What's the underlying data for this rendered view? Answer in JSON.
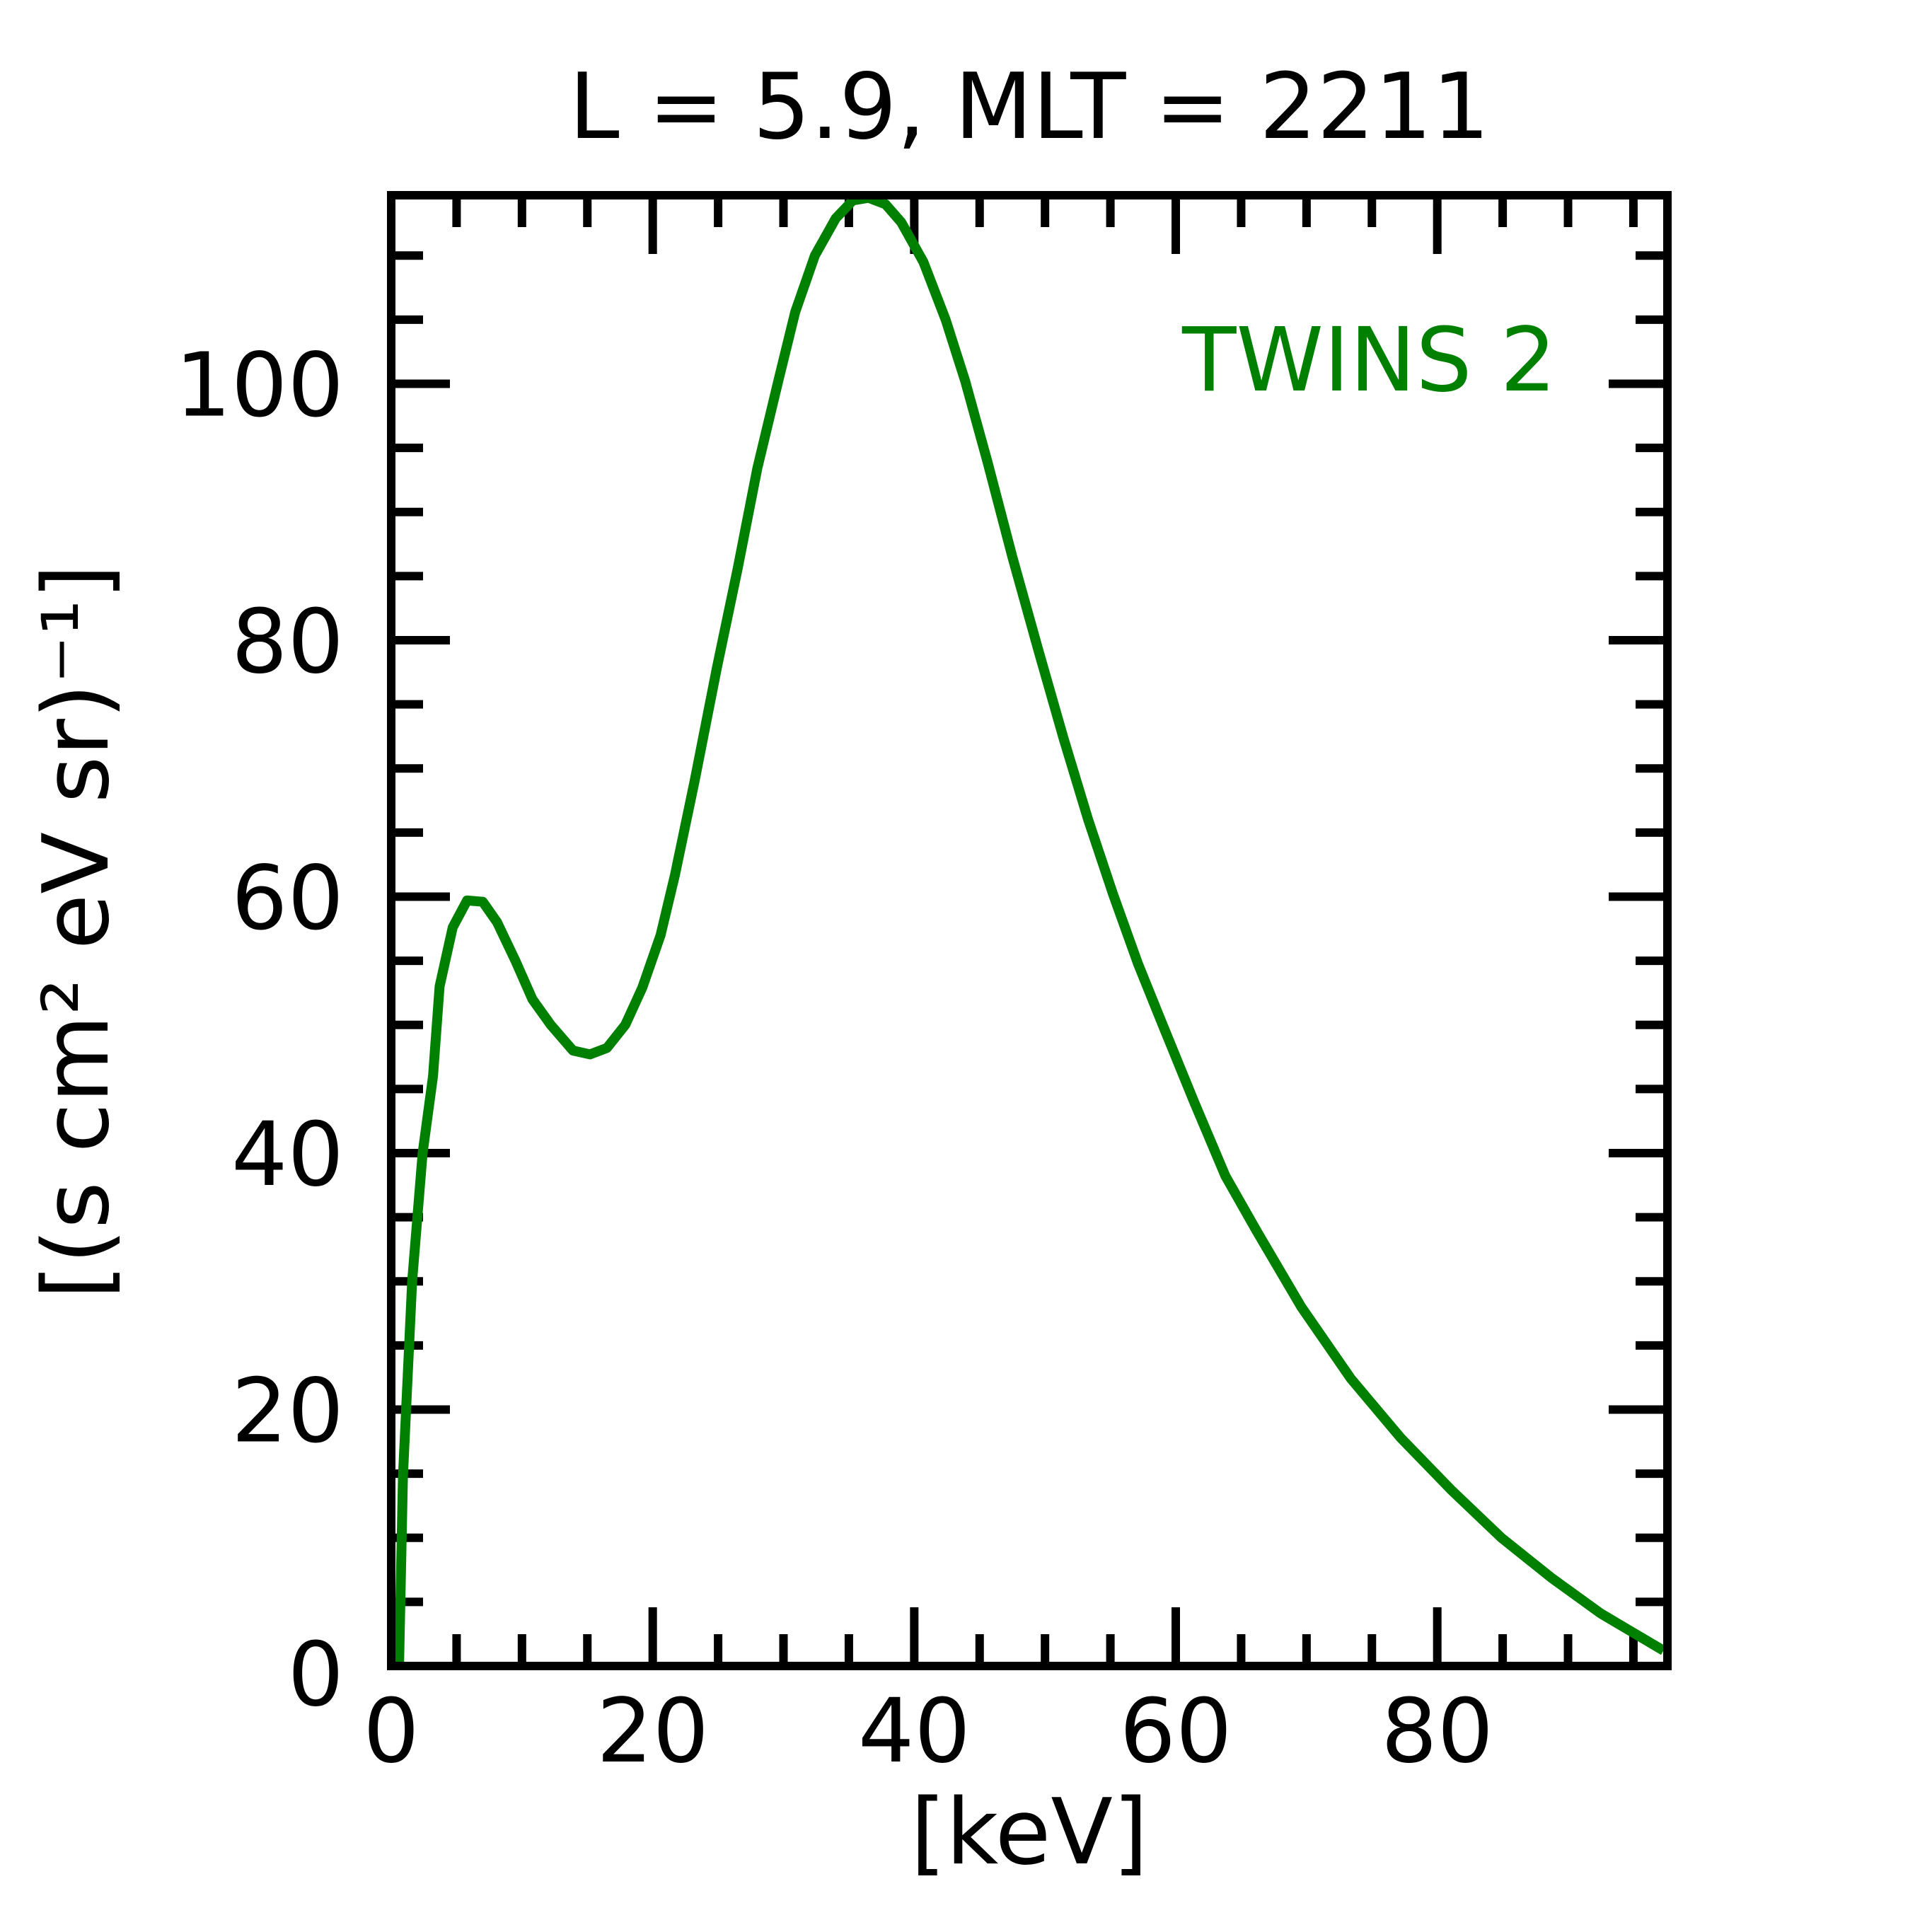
{
  "chart_data": {
    "type": "line",
    "title": "L =  5.9, MLT = 2211",
    "xlabel": "[keV]",
    "ylabel": "[(s cm² eV sr)⁻¹]",
    "xlim": [
      0,
      97.6
    ],
    "ylim": [
      0,
      114.7
    ],
    "x_ticks": [
      0,
      20,
      40,
      60,
      80
    ],
    "x_tick_labels": [
      "0",
      "20",
      "40",
      "60",
      "80"
    ],
    "y_ticks": [
      0,
      20,
      40,
      60,
      80,
      100
    ],
    "y_tick_labels": [
      "0",
      "20",
      "40",
      "60",
      "80",
      "100"
    ],
    "minor_tick_step": 5,
    "grid": false,
    "legend_placement": "top-right",
    "series": [
      {
        "name": "TWINS 2",
        "color": "#008000",
        "x": [
          0.6,
          0.9,
          1.6,
          2.4,
          3.2,
          3.7,
          4.7,
          5.8,
          7.0,
          8.1,
          9.5,
          10.8,
          12.2,
          13.9,
          15.2,
          16.5,
          17.9,
          19.2,
          20.6,
          21.7,
          23.2,
          24.9,
          26.5,
          28.0,
          29.6,
          30.9,
          32.4,
          34.0,
          35.3,
          36.5,
          37.8,
          39.0,
          40.7,
          42.4,
          43.9,
          45.6,
          47.5,
          49.5,
          51.4,
          53.3,
          55.2,
          57.1,
          59.0,
          61.4,
          63.8,
          66.2,
          69.6,
          73.4,
          77.2,
          81.1,
          84.9,
          88.7,
          92.5,
          97.3
        ],
        "y": [
          0,
          14.8,
          30,
          40,
          46,
          53,
          57.6,
          59.7,
          59.6,
          58,
          55,
          52,
          50,
          48,
          47.7,
          48.2,
          50,
          52.9,
          57,
          61.7,
          69,
          77.8,
          85.6,
          93.4,
          100.2,
          105.6,
          110,
          112.9,
          114.3,
          114.5,
          114,
          112.6,
          109.5,
          105,
          100.2,
          93.9,
          86.5,
          79.2,
          72.4,
          66,
          60.2,
          54.8,
          50,
          44,
          38.2,
          33.9,
          28,
          22.4,
          17.8,
          13.7,
          10,
          6.9,
          4.1,
          1.2
        ]
      }
    ]
  }
}
